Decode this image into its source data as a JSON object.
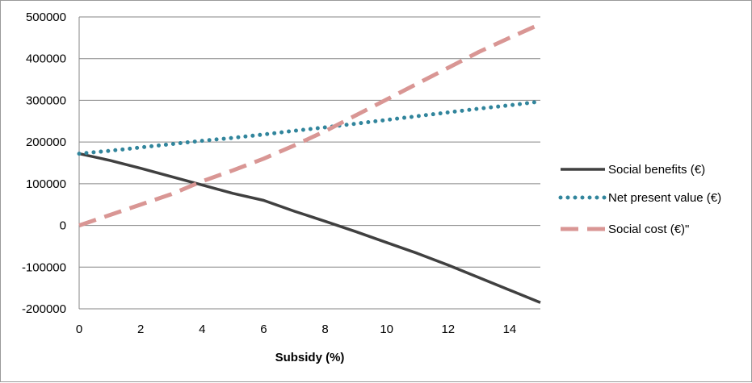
{
  "chart_data": {
    "type": "line",
    "xlabel": "Subsidy (%)",
    "ylabel": "",
    "title": "",
    "xlim": [
      0,
      15
    ],
    "ylim": [
      -200000,
      500000
    ],
    "x_ticks": [
      0,
      2,
      4,
      6,
      8,
      10,
      12,
      14
    ],
    "y_ticks": [
      -200000,
      -100000,
      0,
      100000,
      200000,
      300000,
      400000,
      500000
    ],
    "grid": "horizontal",
    "legend_position": "right",
    "series": [
      {
        "name": "Social benefits (€)",
        "style": "solid",
        "color": "#404040",
        "x": [
          0,
          1,
          2,
          3,
          4,
          5,
          6,
          7,
          8,
          9,
          10,
          11,
          12,
          13,
          14,
          15
        ],
        "y": [
          172000,
          156000,
          137000,
          117000,
          97000,
          77000,
          60000,
          34000,
          10000,
          -15000,
          -41000,
          -67000,
          -95000,
          -125000,
          -155000,
          -185000
        ]
      },
      {
        "name": "Net present value (€)",
        "style": "dotted",
        "color": "#31859c",
        "x": [
          0,
          1,
          2,
          3,
          4,
          5,
          6,
          7,
          8,
          9,
          10,
          11,
          12,
          13,
          14,
          15
        ],
        "y": [
          172000,
          179000,
          187000,
          195000,
          203000,
          210000,
          218000,
          227000,
          235000,
          244000,
          253000,
          262000,
          271000,
          280000,
          288000,
          297000
        ]
      },
      {
        "name": "Social cost (€)\"",
        "style": "dashed",
        "color": "#d99694",
        "x": [
          0,
          1,
          2,
          3,
          4,
          5,
          6,
          7,
          8,
          9,
          10,
          11,
          12,
          13,
          14,
          15
        ],
        "y": [
          0,
          25000,
          50000,
          75000,
          106000,
          132000,
          160000,
          192000,
          226000,
          264000,
          302000,
          340000,
          378000,
          416000,
          450000,
          483000
        ]
      }
    ]
  }
}
